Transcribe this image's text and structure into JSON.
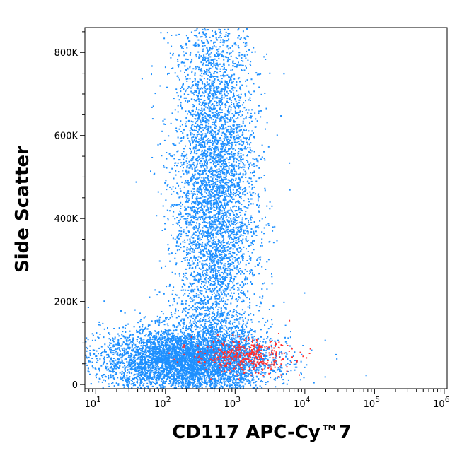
{
  "chart_data": {
    "type": "scatter",
    "xlabel": "CD117 APC-Cy™7",
    "ylabel": "Side Scatter",
    "xscale": "log",
    "xlim": [
      7,
      1100000
    ],
    "ylim": [
      -10000,
      860000
    ],
    "x_ticks": [
      {
        "value": 10,
        "base": "10",
        "exp": "1"
      },
      {
        "value": 100,
        "base": "10",
        "exp": "2"
      },
      {
        "value": 1000,
        "base": "10",
        "exp": "3"
      },
      {
        "value": 10000,
        "base": "10",
        "exp": "4"
      },
      {
        "value": 100000,
        "base": "10",
        "exp": "5"
      },
      {
        "value": 1000000,
        "base": "10",
        "exp": "6"
      }
    ],
    "y_ticks": [
      {
        "value": 0,
        "label": "0"
      },
      {
        "value": 200000,
        "label": "200K"
      },
      {
        "value": 400000,
        "label": "400K"
      },
      {
        "value": 600000,
        "label": "600K"
      },
      {
        "value": 800000,
        "label": "800K"
      }
    ],
    "grid": false,
    "series": [
      {
        "color": "#1e90ff",
        "description_of_population": "main cell population"
      },
      {
        "color": "#ff3030",
        "description_of_population": "CD117 positive cells"
      }
    ],
    "populations": [
      {
        "series": 0,
        "logx_center": 2.7,
        "y_center": 450000,
        "logx_spread": 0.3,
        "y_spread": 250000
      },
      {
        "series": 0,
        "logx_center": 2.3,
        "y_center": 60000,
        "logx_spread": 0.6,
        "y_spread": 40000
      },
      {
        "series": 1,
        "logx_center": 3.1,
        "y_center": 70000,
        "logx_spread": 0.35,
        "y_spread": 20000
      }
    ]
  }
}
